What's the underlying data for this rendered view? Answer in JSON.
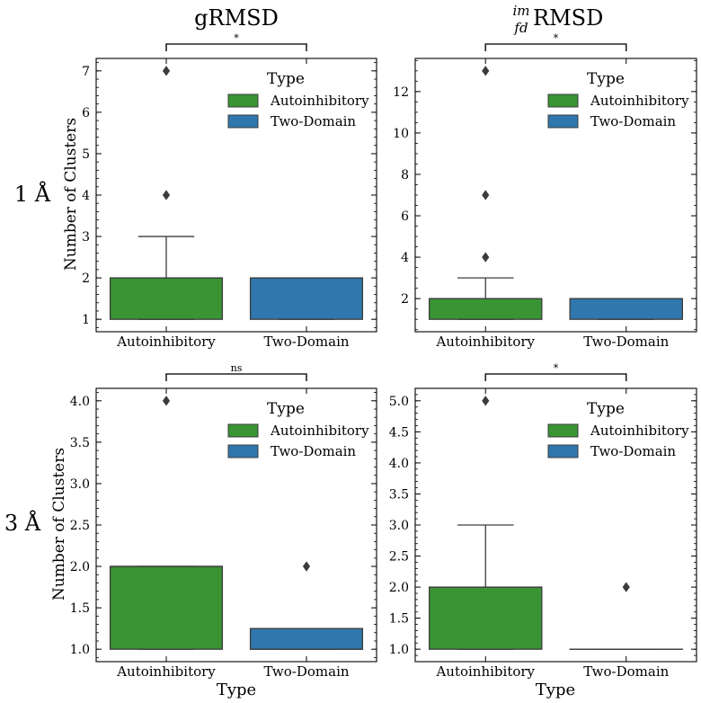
{
  "figure": {
    "col_titles": [
      "gRMSD",
      "RMSD"
    ],
    "col2_title_sup": "im",
    "col2_title_sub": "fd",
    "row_labels": [
      "1 Å",
      "3 Å"
    ],
    "ylabel": "Number of Clusters",
    "xlabel": "Type"
  },
  "colors": {
    "Autoinhibitory": "#3a9434",
    "Two-Domain": "#2f77ac",
    "edge": "#3c3c3c"
  },
  "chart_data": [
    {
      "type": "box",
      "panel": "1 Å gRMSD",
      "categories": [
        "Autoinhibitory",
        "Two-Domain"
      ],
      "ylim": [
        0.7,
        7.3
      ],
      "yticks": [
        1,
        2,
        3,
        4,
        5,
        6,
        7
      ],
      "yminor": 0.2,
      "ytick_labels": [
        "1",
        "2",
        "3",
        "4",
        "5",
        "6",
        "7"
      ],
      "boxes": [
        {
          "category": "Autoinhibitory",
          "q1": 1,
          "median": 2,
          "q3": 2,
          "whisker_low": 1,
          "whisker_high": 3,
          "outliers": [
            4,
            7
          ]
        },
        {
          "category": "Two-Domain",
          "q1": 1,
          "median": 2,
          "q3": 2,
          "whisker_low": 1,
          "whisker_high": 2,
          "outliers": []
        }
      ],
      "significance": "*",
      "legend": {
        "title": "Type",
        "entries": [
          "Autoinhibitory",
          "Two-Domain"
        ],
        "loc": "upper right"
      }
    },
    {
      "type": "box",
      "panel": "1 Å RMSD",
      "categories": [
        "Autoinhibitory",
        "Two-Domain"
      ],
      "ylim": [
        0.4,
        13.6
      ],
      "yticks": [
        2,
        4,
        6,
        8,
        10,
        12
      ],
      "yminor": 0.5,
      "ytick_labels": [
        "2",
        "4",
        "6",
        "8",
        "10",
        "12"
      ],
      "boxes": [
        {
          "category": "Autoinhibitory",
          "q1": 1,
          "median": 2,
          "q3": 2,
          "whisker_low": 1,
          "whisker_high": 3,
          "outliers": [
            4,
            7,
            13
          ]
        },
        {
          "category": "Two-Domain",
          "q1": 1,
          "median": 2,
          "q3": 2,
          "whisker_low": 1,
          "whisker_high": 2,
          "outliers": []
        }
      ],
      "significance": "*",
      "legend": {
        "title": "Type",
        "entries": [
          "Autoinhibitory",
          "Two-Domain"
        ],
        "loc": "upper right"
      }
    },
    {
      "type": "box",
      "panel": "3 Å gRMSD",
      "categories": [
        "Autoinhibitory",
        "Two-Domain"
      ],
      "ylim": [
        0.85,
        4.15
      ],
      "yticks": [
        1.0,
        1.5,
        2.0,
        2.5,
        3.0,
        3.5,
        4.0
      ],
      "yminor": 0.1,
      "ytick_labels": [
        "1.0",
        "1.5",
        "2.0",
        "2.5",
        "3.0",
        "3.5",
        "4.0"
      ],
      "boxes": [
        {
          "category": "Autoinhibitory",
          "q1": 1,
          "median": 2,
          "q3": 2,
          "whisker_low": 1,
          "whisker_high": 2,
          "outliers": [
            4
          ]
        },
        {
          "category": "Two-Domain",
          "q1": 1,
          "median": 1,
          "q3": 1.25,
          "whisker_low": 1,
          "whisker_high": 1.25,
          "outliers": [
            2
          ]
        }
      ],
      "significance": "ns",
      "legend": {
        "title": "Type",
        "entries": [
          "Autoinhibitory",
          "Two-Domain"
        ],
        "loc": "upper right"
      }
    },
    {
      "type": "box",
      "panel": "3 Å RMSD",
      "categories": [
        "Autoinhibitory",
        "Two-Domain"
      ],
      "ylim": [
        0.8,
        5.2
      ],
      "yticks": [
        1.0,
        1.5,
        2.0,
        2.5,
        3.0,
        3.5,
        4.0,
        4.5,
        5.0
      ],
      "yminor": 0.1,
      "ytick_labels": [
        "1.0",
        "1.5",
        "2.0",
        "2.5",
        "3.0",
        "3.5",
        "4.0",
        "4.5",
        "5.0"
      ],
      "boxes": [
        {
          "category": "Autoinhibitory",
          "q1": 1,
          "median": 2,
          "q3": 2,
          "whisker_low": 1,
          "whisker_high": 3,
          "outliers": [
            5
          ]
        },
        {
          "category": "Two-Domain",
          "q1": 1,
          "median": 1,
          "q3": 1,
          "whisker_low": 1,
          "whisker_high": 1,
          "outliers": [
            2
          ]
        }
      ],
      "significance": "*",
      "legend": {
        "title": "Type",
        "entries": [
          "Autoinhibitory",
          "Two-Domain"
        ],
        "loc": "upper right"
      }
    }
  ]
}
